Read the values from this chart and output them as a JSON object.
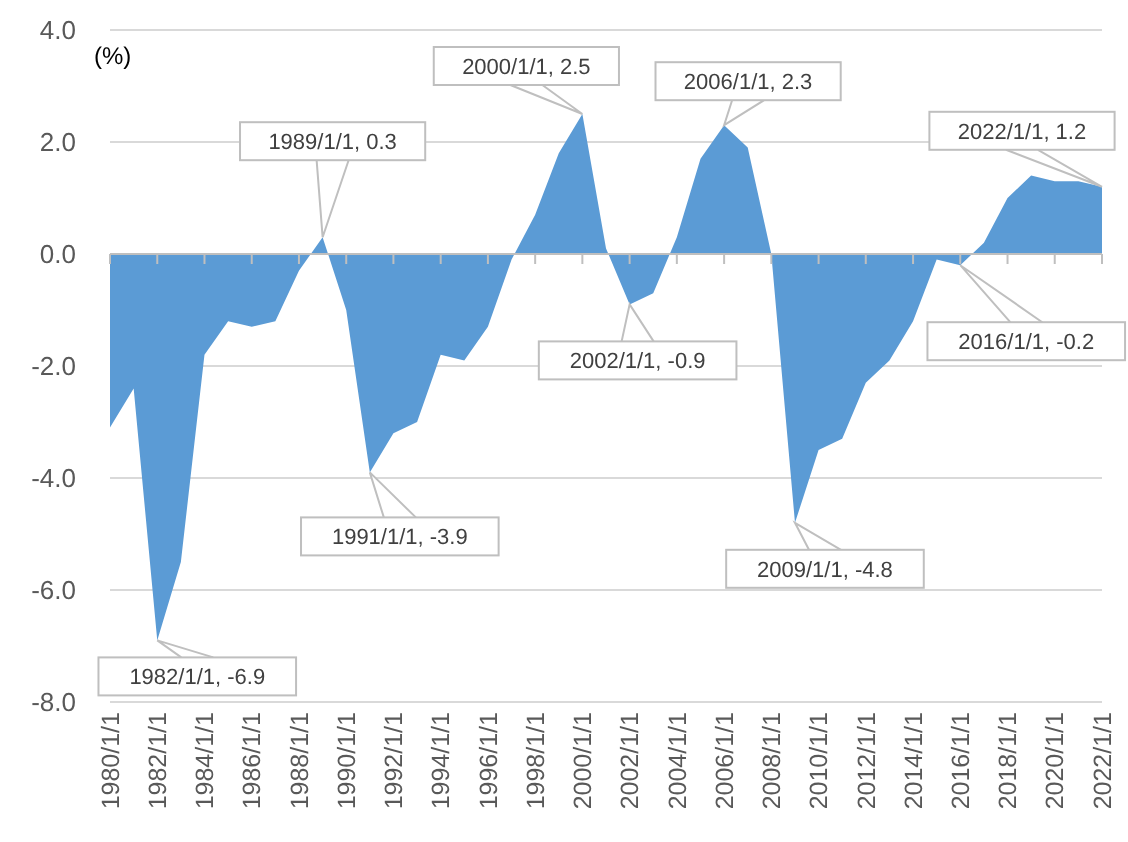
{
  "chart_data": {
    "type": "area",
    "ylabel": "(%)",
    "x": [
      "1980-01-01",
      "1981-01-01",
      "1982-01-01",
      "1983-01-01",
      "1984-01-01",
      "1985-01-01",
      "1986-01-01",
      "1987-01-01",
      "1988-01-01",
      "1989-01-01",
      "1990-01-01",
      "1991-01-01",
      "1992-01-01",
      "1993-01-01",
      "1994-01-01",
      "1995-01-01",
      "1996-01-01",
      "1997-01-01",
      "1998-01-01",
      "1999-01-01",
      "2000-01-01",
      "2001-01-01",
      "2002-01-01",
      "2003-01-01",
      "2004-01-01",
      "2005-01-01",
      "2006-01-01",
      "2007-01-01",
      "2008-01-01",
      "2009-01-01",
      "2010-01-01",
      "2011-01-01",
      "2012-01-01",
      "2013-01-01",
      "2014-01-01",
      "2015-01-01",
      "2016-01-01",
      "2017-01-01",
      "2018-01-01",
      "2019-01-01",
      "2020-01-01",
      "2021-01-01",
      "2022-01-01"
    ],
    "series": [
      {
        "color": "#5b9bd5",
        "values": [
          -3.1,
          -2.4,
          -6.9,
          -5.5,
          -1.8,
          -1.2,
          -1.3,
          -1.2,
          -0.3,
          0.3,
          -1.0,
          -3.9,
          -3.2,
          -3.0,
          -1.8,
          -1.9,
          -1.3,
          -0.1,
          0.7,
          1.8,
          2.5,
          0.1,
          -0.9,
          -0.7,
          0.3,
          1.7,
          2.3,
          1.9,
          0.0,
          -4.8,
          -3.5,
          -3.3,
          -2.3,
          -1.9,
          -1.2,
          -0.1,
          -0.2,
          0.2,
          1.0,
          1.4,
          1.3,
          1.3,
          1.2
        ]
      }
    ],
    "xlim": [
      "1980-01-01",
      "2022-01-01"
    ],
    "xticks": [
      {
        "value": "1980-01-01",
        "label": "1980/1/1"
      },
      {
        "value": "1982-01-01",
        "label": "1982/1/1"
      },
      {
        "value": "1984-01-01",
        "label": "1984/1/1"
      },
      {
        "value": "1986-01-01",
        "label": "1986/1/1"
      },
      {
        "value": "1988-01-01",
        "label": "1988/1/1"
      },
      {
        "value": "1990-01-01",
        "label": "1990/1/1"
      },
      {
        "value": "1992-01-01",
        "label": "1992/1/1"
      },
      {
        "value": "1994-01-01",
        "label": "1994/1/1"
      },
      {
        "value": "1996-01-01",
        "label": "1996/1/1"
      },
      {
        "value": "1998-01-01",
        "label": "1998/1/1"
      },
      {
        "value": "2000-01-01",
        "label": "2000/1/1"
      },
      {
        "value": "2002-01-01",
        "label": "2002/1/1"
      },
      {
        "value": "2004-01-01",
        "label": "2004/1/1"
      },
      {
        "value": "2006-01-01",
        "label": "2006/1/1"
      },
      {
        "value": "2008-01-01",
        "label": "2008/1/1"
      },
      {
        "value": "2010-01-01",
        "label": "2010/1/1"
      },
      {
        "value": "2012-01-01",
        "label": "2012/1/1"
      },
      {
        "value": "2014-01-01",
        "label": "2014/1/1"
      },
      {
        "value": "2016-01-01",
        "label": "2016/1/1"
      },
      {
        "value": "2018-01-01",
        "label": "2018/1/1"
      },
      {
        "value": "2020-01-01",
        "label": "2020/1/1"
      },
      {
        "value": "2022-01-01",
        "label": "2022/1/1"
      }
    ],
    "ylim": [
      -8,
      4
    ],
    "yticks": [
      {
        "value": -8,
        "label": "-8.0"
      },
      {
        "value": -6,
        "label": "-6.0"
      },
      {
        "value": -4,
        "label": "-4.0"
      },
      {
        "value": -2,
        "label": "-2.0"
      },
      {
        "value": 0,
        "label": "0.0"
      },
      {
        "value": 2,
        "label": "2.0"
      },
      {
        "value": 4,
        "label": "4.0"
      }
    ],
    "grid": "y",
    "annotations": [
      {
        "text": "1982/1/1, -6.9",
        "x": "1982-01-01",
        "y": -6.9
      },
      {
        "text": "1989/1/1, 0.3",
        "x": "1989-01-01",
        "y": 0.3
      },
      {
        "text": "1991/1/1, -3.9",
        "x": "1991-01-01",
        "y": -3.9
      },
      {
        "text": "2000/1/1, 2.5",
        "x": "2000-01-01",
        "y": 2.5
      },
      {
        "text": "2002/1/1, -0.9",
        "x": "2002-01-01",
        "y": -0.9
      },
      {
        "text": "2006/1/1, 2.3",
        "x": "2006-01-01",
        "y": 2.3
      },
      {
        "text": "2009/1/1, -4.8",
        "x": "2009-01-01",
        "y": -4.8
      },
      {
        "text": "2016/1/1, -0.2",
        "x": "2016-01-01",
        "y": -0.2
      },
      {
        "text": "2022/1/1, 1.2",
        "x": "2022-01-01",
        "y": 1.2
      }
    ]
  }
}
